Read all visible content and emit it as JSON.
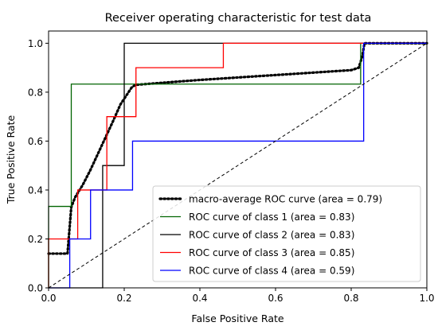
{
  "chart_data": {
    "type": "line",
    "title": "Receiver operating characteristic for test data",
    "xlabel": "False Positive Rate",
    "ylabel": "True Positive Rate",
    "xlim": [
      0.0,
      1.0
    ],
    "ylim": [
      0.0,
      1.05
    ],
    "xticks": [
      "0.0",
      "0.2",
      "0.4",
      "0.6",
      "0.8",
      "1.0"
    ],
    "yticks": [
      "0.0",
      "0.2",
      "0.4",
      "0.6",
      "0.8",
      "1.0"
    ],
    "xtick_values": [
      0.0,
      0.2,
      0.4,
      0.6,
      0.8,
      1.0
    ],
    "ytick_values": [
      0.0,
      0.2,
      0.4,
      0.6,
      0.8,
      1.0
    ],
    "grid": false,
    "legend_position": "lower-right",
    "series": [
      {
        "name": "macro-average ROC curve (area = 0.79)",
        "color": "#000000",
        "style": "dotted",
        "x": [
          0.0,
          0.05,
          0.06,
          0.07,
          0.09,
          0.11,
          0.14,
          0.17,
          0.19,
          0.22,
          0.23,
          0.4,
          0.6,
          0.8,
          0.82,
          0.83,
          0.835,
          1.0
        ],
        "y": [
          0.14,
          0.14,
          0.33,
          0.37,
          0.42,
          0.48,
          0.58,
          0.68,
          0.75,
          0.82,
          0.83,
          0.85,
          0.87,
          0.89,
          0.9,
          0.95,
          1.0,
          1.0
        ]
      },
      {
        "name": "ROC curve of class 1  (area = 0.83)",
        "color": "#006400",
        "style": "solid",
        "x": [
          0.0,
          0.0,
          0.06,
          0.06,
          0.825,
          0.825,
          1.0
        ],
        "y": [
          0.0,
          0.333,
          0.333,
          0.833,
          0.833,
          1.0,
          1.0
        ]
      },
      {
        "name": "ROC curve of class 2  (area = 0.83)",
        "color": "#000000",
        "style": "solid",
        "x": [
          0.0,
          0.143,
          0.143,
          0.2,
          0.2,
          0.45,
          1.0
        ],
        "y": [
          0.0,
          0.0,
          0.5,
          0.5,
          1.0,
          1.0,
          1.0
        ]
      },
      {
        "name": "ROC curve of class 3  (area = 0.85)",
        "color": "#ff0000",
        "style": "solid",
        "x": [
          0.0,
          0.0,
          0.077,
          0.077,
          0.154,
          0.154,
          0.231,
          0.231,
          0.462,
          0.462,
          0.83,
          1.0
        ],
        "y": [
          0.0,
          0.2,
          0.2,
          0.4,
          0.4,
          0.7,
          0.7,
          0.9,
          0.9,
          1.0,
          1.0,
          1.0
        ]
      },
      {
        "name": "ROC curve of class 4  (area = 0.59)",
        "color": "#0000ff",
        "style": "solid",
        "x": [
          0.0,
          0.056,
          0.056,
          0.111,
          0.111,
          0.222,
          0.222,
          0.833,
          0.833,
          1.0
        ],
        "y": [
          0.0,
          0.0,
          0.2,
          0.2,
          0.4,
          0.4,
          0.6,
          0.6,
          1.0,
          1.0
        ]
      },
      {
        "name": "",
        "color": "#000000",
        "style": "dashed",
        "x": [
          0.0,
          1.0
        ],
        "y": [
          0.0,
          1.0
        ]
      }
    ]
  }
}
